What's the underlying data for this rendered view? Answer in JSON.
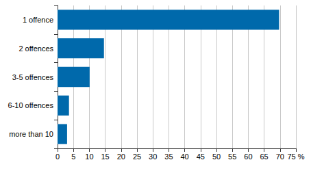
{
  "chart_data": {
    "type": "bar",
    "orientation": "horizontal",
    "categories": [
      "1 offence",
      "2 offences",
      "3-5 offences",
      "6-10 offences",
      "more than 10"
    ],
    "values": [
      69.7,
      14.6,
      10.1,
      3.6,
      3.0
    ],
    "color": "#0069ab",
    "xlim": [
      0,
      75
    ],
    "xticks": [
      0,
      5,
      10,
      15,
      20,
      25,
      30,
      35,
      40,
      45,
      50,
      55,
      60,
      65,
      70,
      {
        "value": 75,
        "label": "75 %"
      }
    ],
    "grid": true
  }
}
